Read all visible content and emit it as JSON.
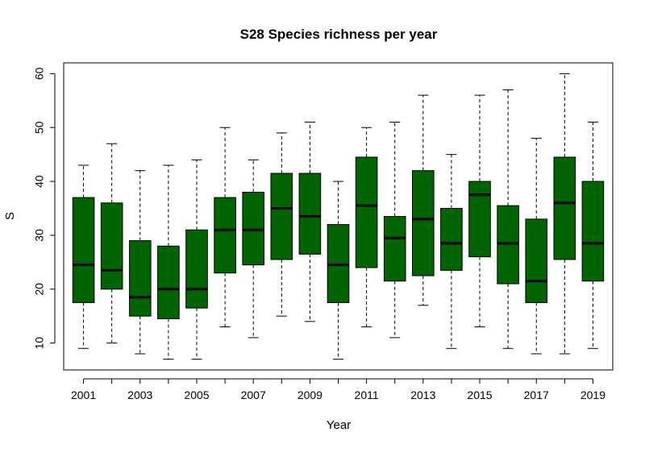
{
  "chart_data": {
    "type": "boxplot",
    "title": "S28 Species richness per year",
    "xlabel": "Year",
    "ylabel": "S",
    "ylim": [
      5,
      62
    ],
    "yticks": [
      10,
      20,
      30,
      40,
      50,
      60
    ],
    "box_color": "#006400",
    "categories": [
      "2001",
      "2002",
      "2003",
      "2004",
      "2005",
      "2006",
      "2007",
      "2008",
      "2009",
      "2010",
      "2011",
      "2012",
      "2013",
      "2014",
      "2015",
      "2016",
      "2017",
      "2018",
      "2019"
    ],
    "xtick_labels_shown": [
      "2001",
      "2003",
      "2005",
      "2007",
      "2009",
      "2011",
      "2013",
      "2015",
      "2017",
      "2019"
    ],
    "boxes": [
      {
        "year": "2001",
        "min": 9,
        "q1": 17.5,
        "median": 24.5,
        "q3": 37,
        "max": 43
      },
      {
        "year": "2002",
        "min": 10,
        "q1": 20,
        "median": 23.5,
        "q3": 36,
        "max": 47
      },
      {
        "year": "2003",
        "min": 8,
        "q1": 15,
        "median": 18.5,
        "q3": 29,
        "max": 42
      },
      {
        "year": "2004",
        "min": 7,
        "q1": 14.5,
        "median": 20,
        "q3": 28,
        "max": 43
      },
      {
        "year": "2005",
        "min": 7,
        "q1": 16.5,
        "median": 20,
        "q3": 31,
        "max": 44
      },
      {
        "year": "2006",
        "min": 13,
        "q1": 23,
        "median": 31,
        "q3": 37,
        "max": 50
      },
      {
        "year": "2007",
        "min": 11,
        "q1": 24.5,
        "median": 31,
        "q3": 38,
        "max": 44
      },
      {
        "year": "2008",
        "min": 15,
        "q1": 25.5,
        "median": 35,
        "q3": 41.5,
        "max": 49
      },
      {
        "year": "2009",
        "min": 14,
        "q1": 26.5,
        "median": 33.5,
        "q3": 41.5,
        "max": 51
      },
      {
        "year": "2010",
        "min": 7,
        "q1": 17.5,
        "median": 24.5,
        "q3": 32,
        "max": 40
      },
      {
        "year": "2011",
        "min": 13,
        "q1": 24,
        "median": 35.5,
        "q3": 44.5,
        "max": 50
      },
      {
        "year": "2012",
        "min": 11,
        "q1": 21.5,
        "median": 29.5,
        "q3": 33.5,
        "max": 51
      },
      {
        "year": "2013",
        "min": 17,
        "q1": 22.5,
        "median": 33,
        "q3": 42,
        "max": 56
      },
      {
        "year": "2014",
        "min": 9,
        "q1": 23.5,
        "median": 28.5,
        "q3": 35,
        "max": 45
      },
      {
        "year": "2015",
        "min": 13,
        "q1": 26,
        "median": 37.5,
        "q3": 40,
        "max": 56
      },
      {
        "year": "2016",
        "min": 9,
        "q1": 21,
        "median": 28.5,
        "q3": 35.5,
        "max": 57
      },
      {
        "year": "2017",
        "min": 8,
        "q1": 17.5,
        "median": 21.5,
        "q3": 33,
        "max": 48
      },
      {
        "year": "2018",
        "min": 8,
        "q1": 25.5,
        "median": 36,
        "q3": 44.5,
        "max": 60
      },
      {
        "year": "2019",
        "min": 9,
        "q1": 21.5,
        "median": 28.5,
        "q3": 40,
        "max": 51
      }
    ]
  }
}
